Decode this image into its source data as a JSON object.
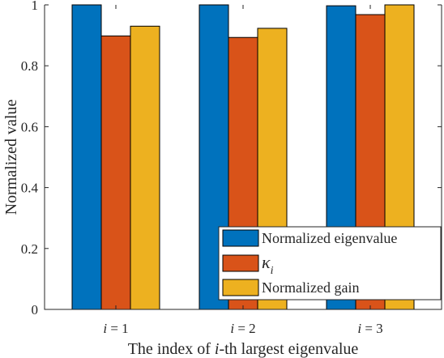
{
  "chart_data": {
    "type": "bar",
    "categories": [
      "i = 1",
      "i = 2",
      "i = 3"
    ],
    "category_parts": [
      {
        "var": "i",
        "rest": " = 1"
      },
      {
        "var": "i",
        "rest": " = 2"
      },
      {
        "var": "i",
        "rest": " = 3"
      }
    ],
    "series": [
      {
        "name": "Normalized eigenvalue",
        "color": "#0072BD",
        "values": [
          1.0,
          1.0,
          0.997
        ]
      },
      {
        "name": "κ_i",
        "color": "#D95319",
        "values": [
          0.898,
          0.893,
          0.968
        ]
      },
      {
        "name": "Normalized gain",
        "color": "#EDB120",
        "values": [
          0.93,
          0.923,
          1.0
        ]
      }
    ],
    "xlabel": "The index of i-th largest eigenvalue",
    "xlabel_parts": {
      "pre": "The index of ",
      "var": "i",
      "post": "-th largest eigenvalue"
    },
    "ylabel": "Normalized value",
    "ylim": [
      0,
      1
    ],
    "yticks": [
      "0",
      "0.2",
      "0.4",
      "0.6",
      "0.8",
      "1"
    ],
    "legend_position": "lower-right",
    "grid": false
  }
}
